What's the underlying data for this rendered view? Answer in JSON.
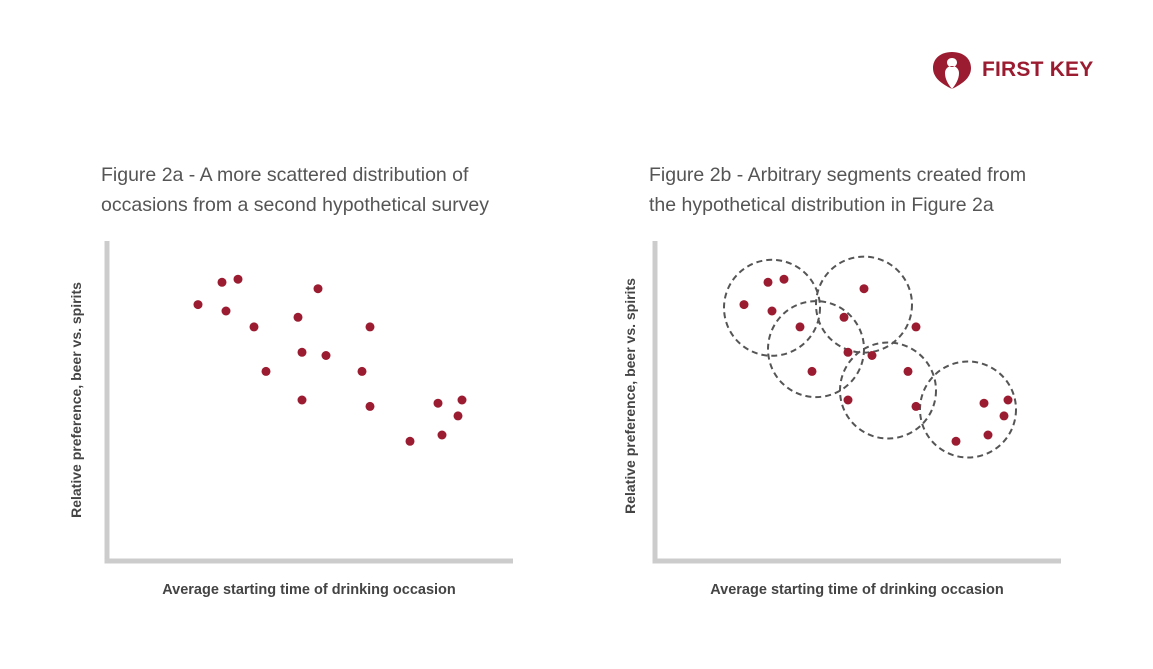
{
  "logo": {
    "text": "FIRST KEY",
    "color": "#9b1c31"
  },
  "colors": {
    "point": "#9b1c31",
    "axis": "#cccccc",
    "segment": "#555555",
    "text": "#444444"
  },
  "chart_data": [
    {
      "type": "scatter",
      "title": "Figure 2a - A more scattered distribution of occasions from a second hypothetical survey",
      "title_lines": [
        "Figure 2a - A more scattered distribution of",
        "occasions from a second hypothetical survey"
      ],
      "xlabel": "Average starting time of drinking occasion",
      "ylabel": "Relative preference, beer vs. spirits",
      "xlim": [
        0,
        100
      ],
      "ylim": [
        0,
        100
      ],
      "grid": false,
      "ticks": false,
      "points": [
        {
          "x": 22,
          "y": 80
        },
        {
          "x": 28,
          "y": 87
        },
        {
          "x": 32,
          "y": 88
        },
        {
          "x": 29,
          "y": 78
        },
        {
          "x": 36,
          "y": 73
        },
        {
          "x": 39,
          "y": 59
        },
        {
          "x": 47,
          "y": 76
        },
        {
          "x": 52,
          "y": 85
        },
        {
          "x": 48,
          "y": 65
        },
        {
          "x": 54,
          "y": 64
        },
        {
          "x": 48,
          "y": 50
        },
        {
          "x": 65,
          "y": 73
        },
        {
          "x": 63,
          "y": 59
        },
        {
          "x": 65,
          "y": 48
        },
        {
          "x": 75,
          "y": 37
        },
        {
          "x": 82,
          "y": 49
        },
        {
          "x": 83,
          "y": 39
        },
        {
          "x": 87,
          "y": 45
        },
        {
          "x": 88,
          "y": 50
        }
      ]
    },
    {
      "type": "scatter",
      "title": "Figure 2b - Arbitrary segments created from the hypothetical distribution in Figure 2a",
      "title_lines": [
        "Figure 2b - Arbitrary segments created from",
        "the hypothetical distribution in Figure 2a"
      ],
      "xlabel": "Average starting time of drinking occasion",
      "ylabel": "Relative preference, beer vs. spirits",
      "xlim": [
        0,
        100
      ],
      "ylim": [
        0,
        100
      ],
      "grid": false,
      "ticks": false,
      "points": [
        {
          "x": 22,
          "y": 80
        },
        {
          "x": 28,
          "y": 87
        },
        {
          "x": 32,
          "y": 88
        },
        {
          "x": 29,
          "y": 78
        },
        {
          "x": 36,
          "y": 73
        },
        {
          "x": 39,
          "y": 59
        },
        {
          "x": 47,
          "y": 76
        },
        {
          "x": 52,
          "y": 85
        },
        {
          "x": 48,
          "y": 65
        },
        {
          "x": 54,
          "y": 64
        },
        {
          "x": 48,
          "y": 50
        },
        {
          "x": 65,
          "y": 73
        },
        {
          "x": 63,
          "y": 59
        },
        {
          "x": 65,
          "y": 48
        },
        {
          "x": 75,
          "y": 37
        },
        {
          "x": 82,
          "y": 49
        },
        {
          "x": 83,
          "y": 39
        },
        {
          "x": 87,
          "y": 45
        },
        {
          "x": 88,
          "y": 50
        }
      ],
      "segments": [
        {
          "cx": 29,
          "cy": 79,
          "r": 12
        },
        {
          "cx": 52,
          "cy": 80,
          "r": 12
        },
        {
          "cx": 40,
          "cy": 66,
          "r": 12
        },
        {
          "cx": 58,
          "cy": 53,
          "r": 12
        },
        {
          "cx": 78,
          "cy": 47,
          "r": 12
        }
      ]
    }
  ]
}
